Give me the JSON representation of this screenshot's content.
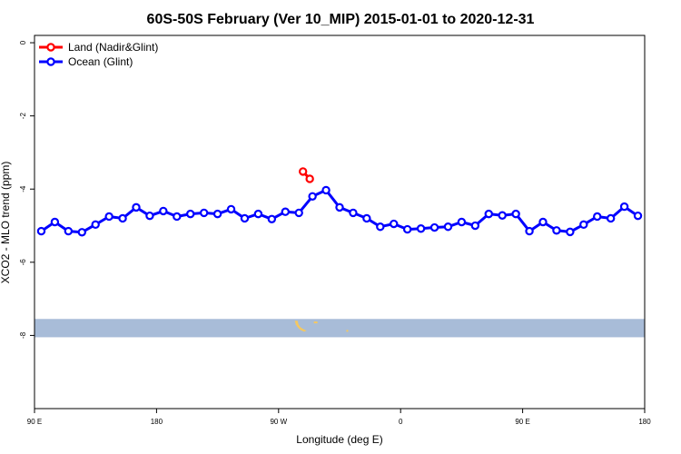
{
  "chart_data": {
    "type": "line",
    "title": "60S-50S February (Ver 10_MIP)   2015-01-01 to 2020-12-31",
    "xlabel": "Longitude (deg E)",
    "ylabel": "XCO2 - MLO trend (ppm)",
    "xlim": [
      90,
      540
    ],
    "ylim": [
      -10,
      0.2
    ],
    "x_ticks": [
      {
        "value": 90,
        "label": "90 E"
      },
      {
        "value": 180,
        "label": "180"
      },
      {
        "value": 270,
        "label": "90 W"
      },
      {
        "value": 360,
        "label": "0"
      },
      {
        "value": 450,
        "label": "90 E"
      },
      {
        "value": 540,
        "label": "180"
      }
    ],
    "y_ticks": [
      {
        "value": 0,
        "label": "0"
      },
      {
        "value": -2,
        "label": "-2"
      },
      {
        "value": -4,
        "label": "-4"
      },
      {
        "value": -6,
        "label": "-6"
      },
      {
        "value": -8,
        "label": "-8"
      }
    ],
    "legend_position": "top-left",
    "series": [
      {
        "name": "Land (Nadir&Glint)",
        "color": "#ff0000",
        "x": [
          288,
          293
        ],
        "y": [
          -3.52,
          -3.72
        ]
      },
      {
        "name": "Ocean (Glint)",
        "color": "#0000ff",
        "x": [
          95,
          105,
          115,
          125,
          135,
          145,
          155,
          165,
          175,
          185,
          195,
          205,
          215,
          225,
          235,
          245,
          255,
          265,
          275,
          285,
          295,
          305,
          315,
          325,
          335,
          345,
          355,
          365,
          375,
          385,
          395,
          405,
          415,
          425,
          435,
          445,
          455,
          465,
          475,
          485,
          495,
          505,
          515,
          525,
          535
        ],
        "y": [
          -5.15,
          -4.9,
          -5.15,
          -5.18,
          -4.97,
          -4.75,
          -4.8,
          -4.5,
          -4.73,
          -4.6,
          -4.75,
          -4.68,
          -4.65,
          -4.68,
          -4.55,
          -4.8,
          -4.68,
          -4.82,
          -4.62,
          -4.65,
          -4.2,
          -4.03,
          -4.5,
          -4.65,
          -4.8,
          -5.03,
          -4.95,
          -5.1,
          -5.08,
          -5.05,
          -5.03,
          -4.9,
          -5.0,
          -4.68,
          -4.72,
          -4.68,
          -5.15,
          -4.9,
          -5.13,
          -5.17,
          -4.97,
          -4.75,
          -4.8,
          -4.48,
          -4.73
        ]
      }
    ],
    "land_strip": {
      "y_range": [
        -8.05,
        -7.55
      ],
      "color": "#a8bcd8",
      "land_color": "#f5c860"
    }
  }
}
